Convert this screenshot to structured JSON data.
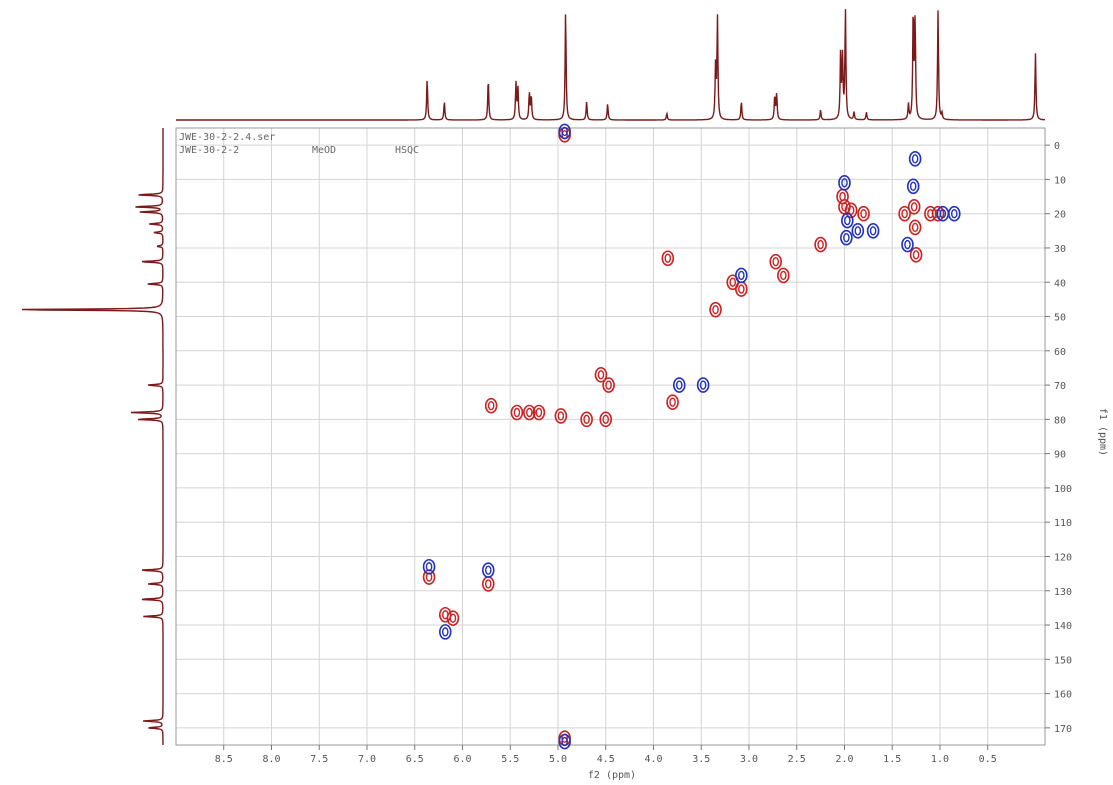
{
  "header": {
    "file": "JWE-30-2-2.4.ser",
    "sample": "JWE-30-2-2",
    "solvent": "MeOD",
    "experiment": "HSQC"
  },
  "colors": {
    "positive": "#cc2222",
    "negative": "#2233bb",
    "projection": "#7a1a1a",
    "grid": "#d4d4d4",
    "frame": "#999999"
  },
  "chart_data": {
    "type": "scatter",
    "xlabel": "f2 (ppm)",
    "ylabel": "f1 (ppm)",
    "xlim": [
      9.0,
      -0.1
    ],
    "ylim": [
      -5,
      175
    ],
    "x_reversed": true,
    "grid": true,
    "x_ticks": [
      "8.5",
      "8.0",
      "7.5",
      "7.0",
      "6.5",
      "6.0",
      "5.5",
      "5.0",
      "4.5",
      "4.0",
      "3.5",
      "3.0",
      "2.5",
      "2.0",
      "1.5",
      "1.0",
      "0.5"
    ],
    "y_ticks": [
      "0",
      "10",
      "20",
      "30",
      "40",
      "50",
      "60",
      "70",
      "80",
      "90",
      "100",
      "110",
      "120",
      "130",
      "140",
      "150",
      "160",
      "170"
    ],
    "series": [
      {
        "phase": "positive",
        "points": [
          {
            "x": 4.93,
            "y": -3
          },
          {
            "x": 4.93,
            "y": 173
          },
          {
            "x": 2.02,
            "y": 15
          },
          {
            "x": 2.0,
            "y": 18
          },
          {
            "x": 1.93,
            "y": 19
          },
          {
            "x": 1.8,
            "y": 20
          },
          {
            "x": 1.27,
            "y": 18
          },
          {
            "x": 1.26,
            "y": 24
          },
          {
            "x": 1.25,
            "y": 32
          },
          {
            "x": 1.37,
            "y": 20
          },
          {
            "x": 1.1,
            "y": 20
          },
          {
            "x": 1.02,
            "y": 20
          },
          {
            "x": 2.25,
            "y": 29
          },
          {
            "x": 2.72,
            "y": 34
          },
          {
            "x": 2.64,
            "y": 38
          },
          {
            "x": 3.08,
            "y": 42
          },
          {
            "x": 3.17,
            "y": 40
          },
          {
            "x": 3.35,
            "y": 48
          },
          {
            "x": 3.85,
            "y": 33
          },
          {
            "x": 4.47,
            "y": 70
          },
          {
            "x": 4.55,
            "y": 67
          },
          {
            "x": 3.8,
            "y": 75
          },
          {
            "x": 5.43,
            "y": 78
          },
          {
            "x": 5.3,
            "y": 78
          },
          {
            "x": 5.2,
            "y": 78
          },
          {
            "x": 5.7,
            "y": 76
          },
          {
            "x": 4.7,
            "y": 80
          },
          {
            "x": 4.5,
            "y": 80
          },
          {
            "x": 4.97,
            "y": 79
          },
          {
            "x": 6.18,
            "y": 137
          },
          {
            "x": 6.1,
            "y": 138
          },
          {
            "x": 5.73,
            "y": 128
          },
          {
            "x": 6.35,
            "y": 126
          }
        ]
      },
      {
        "phase": "negative",
        "points": [
          {
            "x": 4.93,
            "y": -4
          },
          {
            "x": 4.93,
            "y": 174
          },
          {
            "x": 2.0,
            "y": 11
          },
          {
            "x": 1.97,
            "y": 22
          },
          {
            "x": 1.98,
            "y": 27
          },
          {
            "x": 1.86,
            "y": 25
          },
          {
            "x": 1.7,
            "y": 25
          },
          {
            "x": 1.26,
            "y": 4
          },
          {
            "x": 1.28,
            "y": 12
          },
          {
            "x": 1.34,
            "y": 29
          },
          {
            "x": 0.85,
            "y": 20
          },
          {
            "x": 0.97,
            "y": 20
          },
          {
            "x": 3.08,
            "y": 38
          },
          {
            "x": 3.73,
            "y": 70
          },
          {
            "x": 3.48,
            "y": 70
          },
          {
            "x": 6.35,
            "y": 123
          },
          {
            "x": 5.73,
            "y": 124
          },
          {
            "x": 6.18,
            "y": 142
          }
        ]
      }
    ],
    "projection_f2": [
      {
        "x": 6.37,
        "h": 0.38
      },
      {
        "x": 6.19,
        "h": 0.17
      },
      {
        "x": 5.73,
        "h": 0.38
      },
      {
        "x": 5.44,
        "h": 0.33
      },
      {
        "x": 5.42,
        "h": 0.3
      },
      {
        "x": 5.3,
        "h": 0.25
      },
      {
        "x": 5.28,
        "h": 0.22
      },
      {
        "x": 4.92,
        "h": 1.0
      },
      {
        "x": 4.7,
        "h": 0.17
      },
      {
        "x": 4.48,
        "h": 0.15
      },
      {
        "x": 3.86,
        "h": 0.06
      },
      {
        "x": 3.35,
        "h": 0.48
      },
      {
        "x": 3.33,
        "h": 0.93
      },
      {
        "x": 3.08,
        "h": 0.17
      },
      {
        "x": 2.73,
        "h": 0.22
      },
      {
        "x": 2.71,
        "h": 0.24
      },
      {
        "x": 2.25,
        "h": 0.09
      },
      {
        "x": 2.04,
        "h": 0.62
      },
      {
        "x": 2.02,
        "h": 0.55
      },
      {
        "x": 1.99,
        "h": 1.0
      },
      {
        "x": 1.9,
        "h": 0.07
      },
      {
        "x": 1.77,
        "h": 0.07
      },
      {
        "x": 1.33,
        "h": 0.14
      },
      {
        "x": 1.28,
        "h": 1.0
      },
      {
        "x": 1.26,
        "h": 0.9
      },
      {
        "x": 1.02,
        "h": 1.0
      },
      {
        "x": 0.98,
        "h": 0.06
      },
      {
        "x": 0.0,
        "h": 0.61
      }
    ],
    "projection_f1": [
      {
        "y": 14.5,
        "w": 0.17
      },
      {
        "y": 18,
        "w": 0.19
      },
      {
        "y": 19.5,
        "w": 0.15
      },
      {
        "y": 23,
        "w": 0.09
      },
      {
        "y": 25.5,
        "w": 0.06
      },
      {
        "y": 29.5,
        "w": 0.04
      },
      {
        "y": 34,
        "w": 0.15
      },
      {
        "y": 40.5,
        "w": 0.1
      },
      {
        "y": 48,
        "w": 1.0
      },
      {
        "y": 70,
        "w": 0.1
      },
      {
        "y": 78,
        "w": 0.21
      },
      {
        "y": 80,
        "w": 0.17
      },
      {
        "y": 124,
        "w": 0.15
      },
      {
        "y": 128,
        "w": 0.1
      },
      {
        "y": 132.5,
        "w": 0.15
      },
      {
        "y": 137.5,
        "w": 0.13
      },
      {
        "y": 168,
        "w": 0.13
      },
      {
        "y": 170,
        "w": 0.1
      }
    ]
  }
}
